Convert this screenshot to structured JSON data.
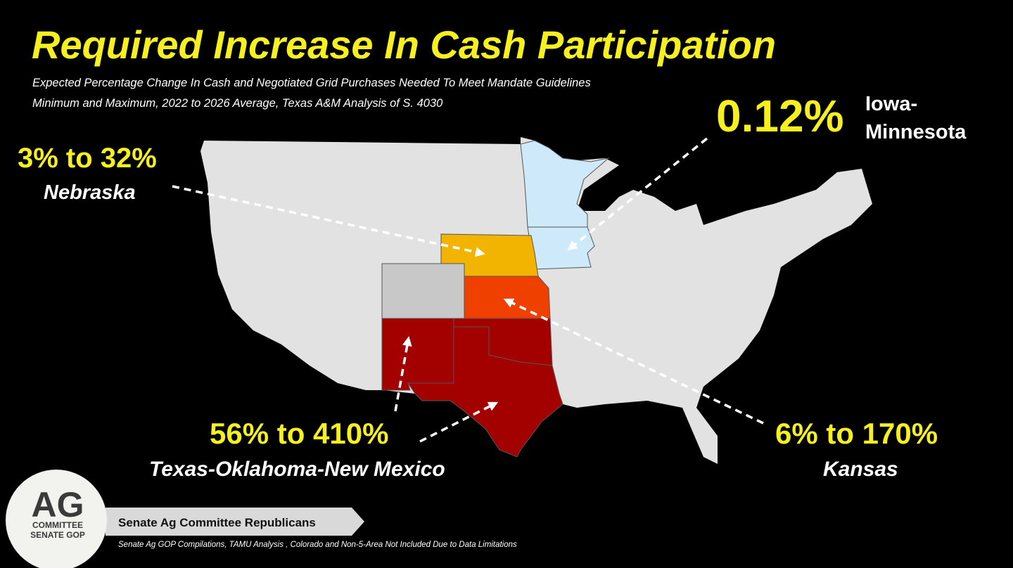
{
  "title": "Required Increase In Cash Participation",
  "subtitle_lines": [
    "Expected Percentage Change In Cash and Negotiated Grid Purchases Needed To Meet Mandate Guidelines",
    "Minimum and Maximum, 2022 to 2026 Average, Texas A&M Analysis of S. 4030"
  ],
  "callouts": [
    {
      "value": "3% to 32%",
      "region_lines": [
        "Nebraska"
      ]
    },
    {
      "value": "0.12%",
      "region_lines": [
        "Iowa-",
        "Minnesota"
      ]
    },
    {
      "value": "56% to 410%",
      "region_lines": [
        "Texas-Oklahoma-New Mexico"
      ]
    },
    {
      "value": "6% to 170%",
      "region_lines": [
        "Kansas"
      ]
    }
  ],
  "logo": {
    "lines": [
      "AG",
      "COMMITTEE",
      "SENATE GOP"
    ]
  },
  "banner": "Senate Ag Committee Republicans",
  "footnote": "Senate Ag GOP Compilations, TAMU Analysis , Colorado and Non-5-Area Not Included Due to Data Limitations"
}
